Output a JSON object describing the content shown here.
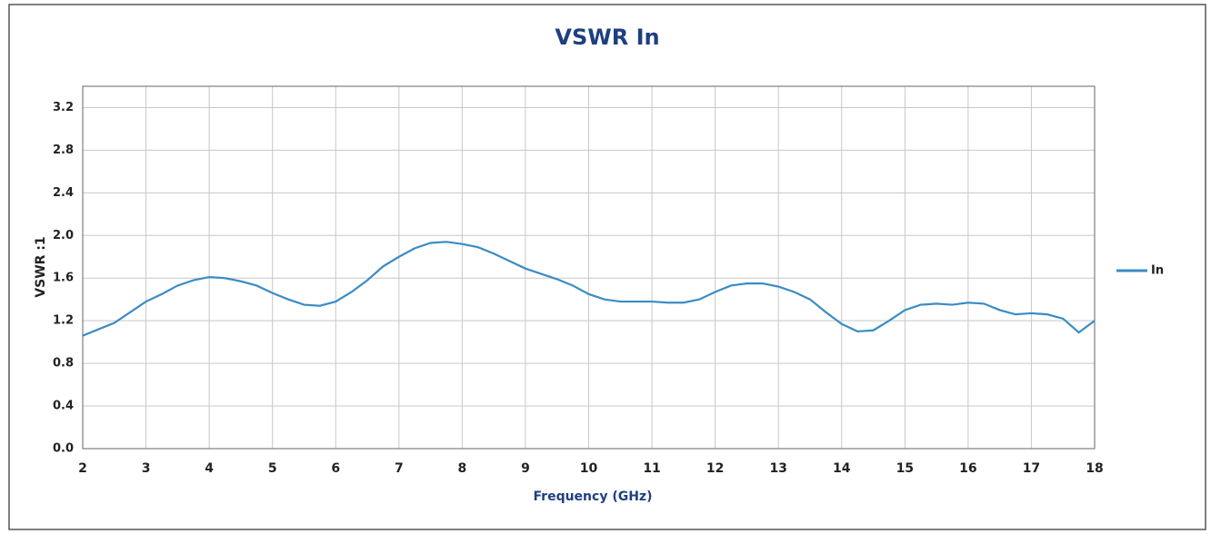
{
  "chart_data": {
    "type": "line",
    "title": "VSWR In",
    "xlabel": "Frequency (GHz)",
    "ylabel": "VSWR :1",
    "x": [
      2.0,
      2.25,
      2.5,
      2.75,
      3.0,
      3.25,
      3.5,
      3.75,
      4.0,
      4.25,
      4.5,
      4.75,
      5.0,
      5.25,
      5.5,
      5.75,
      6.0,
      6.25,
      6.5,
      6.75,
      7.0,
      7.25,
      7.5,
      7.75,
      8.0,
      8.25,
      8.5,
      8.75,
      9.0,
      9.25,
      9.5,
      9.75,
      10.0,
      10.25,
      10.5,
      10.75,
      11.0,
      11.25,
      11.5,
      11.75,
      12.0,
      12.25,
      12.5,
      12.75,
      13.0,
      13.25,
      13.5,
      13.75,
      14.0,
      14.25,
      14.5,
      14.75,
      15.0,
      15.25,
      15.5,
      15.75,
      16.0,
      16.25,
      16.5,
      16.75,
      17.0,
      17.25,
      17.5,
      17.75,
      18.0
    ],
    "series": [
      {
        "name": "In",
        "color": "#3a8cc4",
        "values": [
          1.06,
          1.12,
          1.18,
          1.28,
          1.38,
          1.45,
          1.53,
          1.58,
          1.61,
          1.6,
          1.57,
          1.53,
          1.46,
          1.4,
          1.35,
          1.34,
          1.38,
          1.47,
          1.58,
          1.71,
          1.8,
          1.88,
          1.93,
          1.94,
          1.92,
          1.89,
          1.83,
          1.76,
          1.69,
          1.64,
          1.59,
          1.53,
          1.45,
          1.4,
          1.38,
          1.38,
          1.38,
          1.37,
          1.37,
          1.4,
          1.47,
          1.53,
          1.55,
          1.55,
          1.52,
          1.47,
          1.4,
          1.28,
          1.17,
          1.1,
          1.11,
          1.2,
          1.3,
          1.35,
          1.36,
          1.35,
          1.37,
          1.36,
          1.3,
          1.26,
          1.27,
          1.26,
          1.22,
          1.09,
          1.2
        ]
      }
    ],
    "xlim": [
      2,
      18
    ],
    "xticks": [
      2,
      3,
      4,
      5,
      6,
      7,
      8,
      9,
      10,
      11,
      12,
      13,
      14,
      15,
      16,
      17,
      18
    ],
    "ylim": [
      0,
      3.4
    ],
    "yticks": [
      {
        "value": 0,
        "label": "0.0"
      },
      0.4,
      0.8,
      1.2,
      1.6,
      {
        "value": 2,
        "label": "2.0"
      },
      2.4,
      2.8,
      3.2
    ],
    "grid": true,
    "legend": "right"
  }
}
